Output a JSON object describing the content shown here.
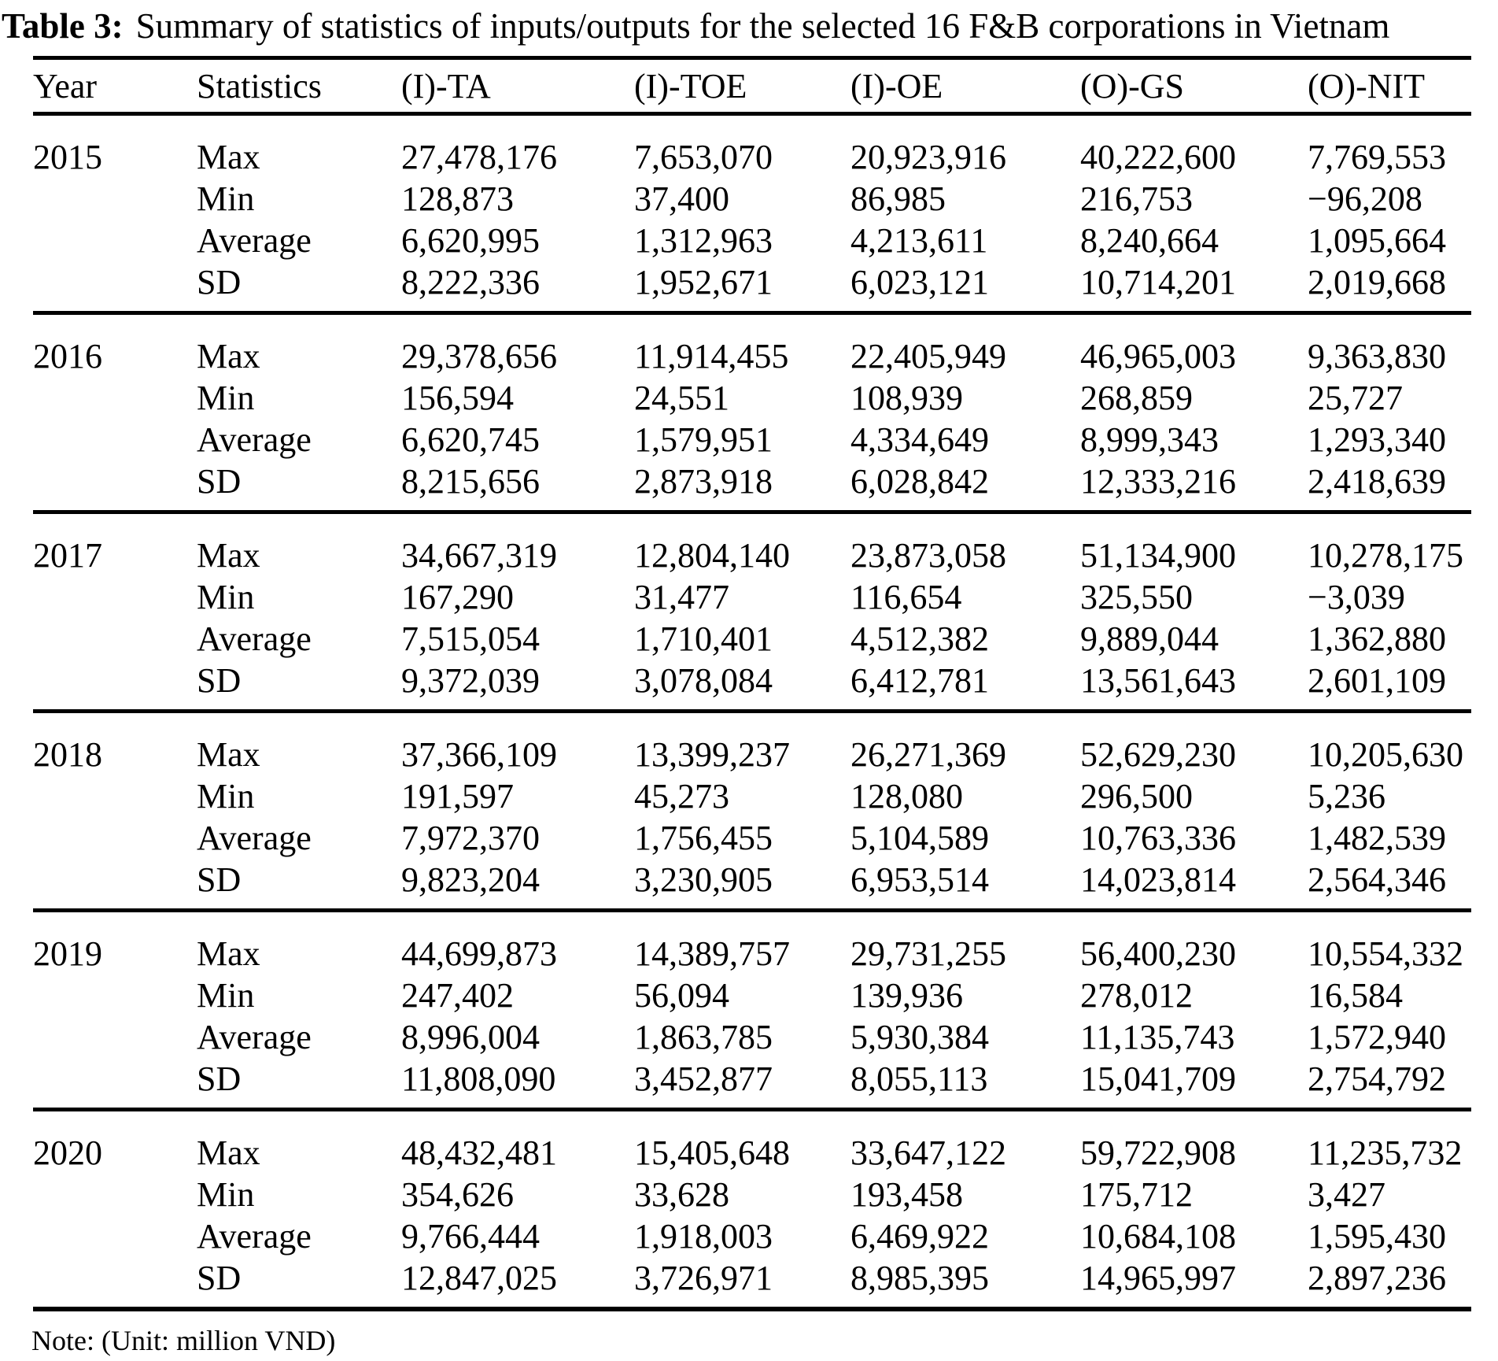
{
  "caption": {
    "label": "Table 3:",
    "text": "Summary of statistics of inputs/outputs for the selected 16 F&B corporations in Vietnam"
  },
  "table": {
    "columns": [
      "Year",
      "Statistics",
      "(I)-TA",
      "(I)-TOE",
      "(I)-OE",
      "(O)-GS",
      "(O)-NIT"
    ],
    "groups": [
      {
        "year": "2015",
        "rows": [
          {
            "stat": "Max",
            "values": [
              "27,478,176",
              "7,653,070",
              "20,923,916",
              "40,222,600",
              "7,769,553"
            ]
          },
          {
            "stat": "Min",
            "values": [
              "128,873",
              "37,400",
              "86,985",
              "216,753",
              "−96,208"
            ]
          },
          {
            "stat": "Average",
            "values": [
              "6,620,995",
              "1,312,963",
              "4,213,611",
              "8,240,664",
              "1,095,664"
            ]
          },
          {
            "stat": "SD",
            "values": [
              "8,222,336",
              "1,952,671",
              "6,023,121",
              "10,714,201",
              "2,019,668"
            ]
          }
        ]
      },
      {
        "year": "2016",
        "rows": [
          {
            "stat": "Max",
            "values": [
              "29,378,656",
              "11,914,455",
              "22,405,949",
              "46,965,003",
              "9,363,830"
            ]
          },
          {
            "stat": "Min",
            "values": [
              "156,594",
              "24,551",
              "108,939",
              "268,859",
              "25,727"
            ]
          },
          {
            "stat": "Average",
            "values": [
              "6,620,745",
              "1,579,951",
              "4,334,649",
              "8,999,343",
              "1,293,340"
            ]
          },
          {
            "stat": "SD",
            "values": [
              "8,215,656",
              "2,873,918",
              "6,028,842",
              "12,333,216",
              "2,418,639"
            ]
          }
        ]
      },
      {
        "year": "2017",
        "rows": [
          {
            "stat": "Max",
            "values": [
              "34,667,319",
              "12,804,140",
              "23,873,058",
              "51,134,900",
              "10,278,175"
            ]
          },
          {
            "stat": "Min",
            "values": [
              "167,290",
              "31,477",
              "116,654",
              "325,550",
              "−3,039"
            ]
          },
          {
            "stat": "Average",
            "values": [
              "7,515,054",
              "1,710,401",
              "4,512,382",
              "9,889,044",
              "1,362,880"
            ]
          },
          {
            "stat": "SD",
            "values": [
              "9,372,039",
              "3,078,084",
              "6,412,781",
              "13,561,643",
              "2,601,109"
            ]
          }
        ]
      },
      {
        "year": "2018",
        "rows": [
          {
            "stat": "Max",
            "values": [
              "37,366,109",
              "13,399,237",
              "26,271,369",
              "52,629,230",
              "10,205,630"
            ]
          },
          {
            "stat": "Min",
            "values": [
              "191,597",
              "45,273",
              "128,080",
              "296,500",
              "5,236"
            ]
          },
          {
            "stat": "Average",
            "values": [
              "7,972,370",
              "1,756,455",
              "5,104,589",
              "10,763,336",
              "1,482,539"
            ]
          },
          {
            "stat": "SD",
            "values": [
              "9,823,204",
              "3,230,905",
              "6,953,514",
              "14,023,814",
              "2,564,346"
            ]
          }
        ]
      },
      {
        "year": "2019",
        "rows": [
          {
            "stat": "Max",
            "values": [
              "44,699,873",
              "14,389,757",
              "29,731,255",
              "56,400,230",
              "10,554,332"
            ]
          },
          {
            "stat": "Min",
            "values": [
              "247,402",
              "56,094",
              "139,936",
              "278,012",
              "16,584"
            ]
          },
          {
            "stat": "Average",
            "values": [
              "8,996,004",
              "1,863,785",
              "5,930,384",
              "11,135,743",
              "1,572,940"
            ]
          },
          {
            "stat": "SD",
            "values": [
              "11,808,090",
              "3,452,877",
              "8,055,113",
              "15,041,709",
              "2,754,792"
            ]
          }
        ]
      },
      {
        "year": "2020",
        "rows": [
          {
            "stat": "Max",
            "values": [
              "48,432,481",
              "15,405,648",
              "33,647,122",
              "59,722,908",
              "11,235,732"
            ]
          },
          {
            "stat": "Min",
            "values": [
              "354,626",
              "33,628",
              "193,458",
              "175,712",
              "3,427"
            ]
          },
          {
            "stat": "Average",
            "values": [
              "9,766,444",
              "1,918,003",
              "6,469,922",
              "10,684,108",
              "1,595,430"
            ]
          },
          {
            "stat": "SD",
            "values": [
              "12,847,025",
              "3,726,971",
              "8,985,395",
              "14,965,997",
              "2,897,236"
            ]
          }
        ]
      }
    ]
  },
  "note": "Note: (Unit: million VND)"
}
